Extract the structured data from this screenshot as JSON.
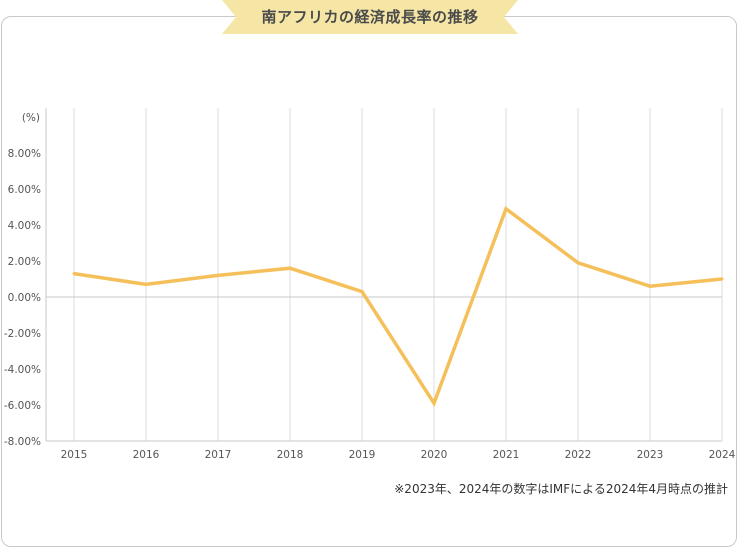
{
  "header": {
    "title": "南アフリカの経済成長率の推移"
  },
  "note": "※2023年、2024年の数字はIMFによる2024年4月時点の推計",
  "colors": {
    "line": "#f5c05a",
    "ribbon": "#f5e6a6",
    "grid": "#dddddd",
    "axis": "#c8c8c8"
  },
  "chart_data": {
    "type": "line",
    "ylabel": "(%)",
    "categories": [
      "2015",
      "2016",
      "2017",
      "2018",
      "2019",
      "2020",
      "2021",
      "2022",
      "2023",
      "2024"
    ],
    "series": [
      {
        "values": [
          1.3,
          0.7,
          1.2,
          1.6,
          0.3,
          -5.9,
          4.9,
          1.9,
          0.6,
          1.0
        ]
      }
    ],
    "ylim": [
      -8,
      10
    ],
    "yticks": [
      "8.00%",
      "6.00%",
      "4.00%",
      "2.00%",
      "0.00%",
      "-2.00%",
      "-4.00%",
      "-6.00%",
      "-8.00%"
    ],
    "ytick_values": [
      8,
      6,
      4,
      2,
      0,
      -2,
      -4,
      -6,
      -8
    ],
    "grid": "vertical"
  }
}
